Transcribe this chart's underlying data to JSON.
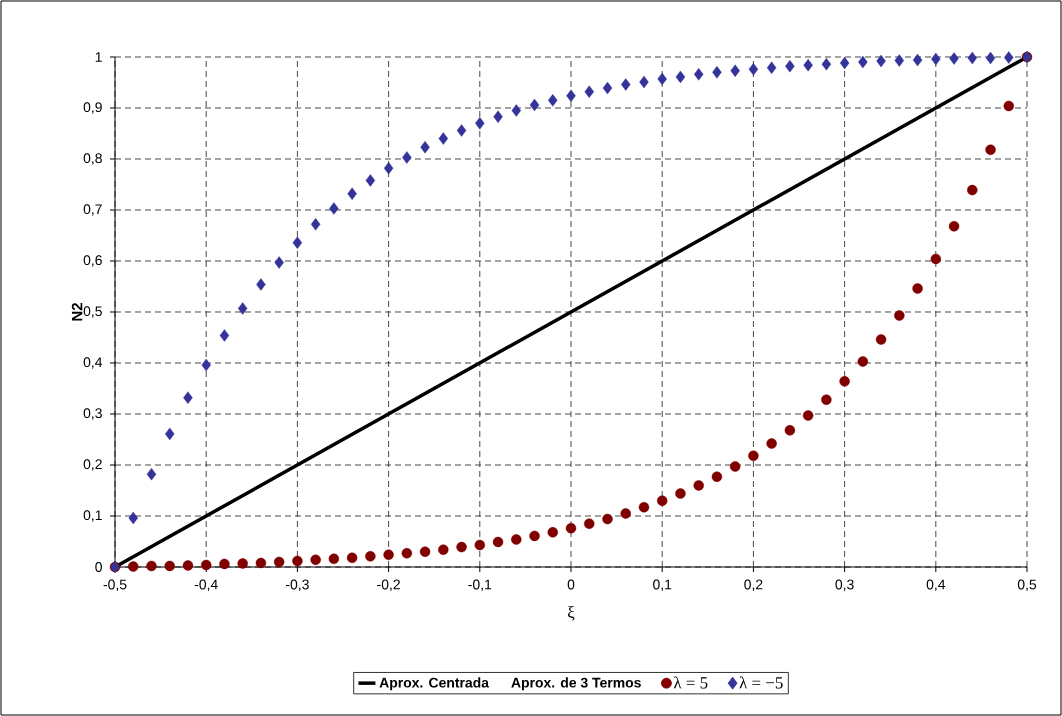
{
  "chart_data": {
    "type": "scatter",
    "xlabel": "ξ",
    "ylabel": "N2",
    "x": [
      -0.5,
      -0.48,
      -0.46,
      -0.44,
      -0.42,
      -0.4,
      -0.38,
      -0.36,
      -0.34,
      -0.32,
      -0.3,
      -0.28,
      -0.26,
      -0.24,
      -0.22,
      -0.2,
      -0.18,
      -0.16,
      -0.14,
      -0.12,
      -0.1,
      -0.08,
      -0.06,
      -0.04,
      -0.02,
      0,
      0.02,
      0.04,
      0.06,
      0.08,
      0.1,
      0.12,
      0.14,
      0.16,
      0.18,
      0.2,
      0.22,
      0.24,
      0.26,
      0.28,
      0.3,
      0.32,
      0.34,
      0.36,
      0.38,
      0.4,
      0.42,
      0.44,
      0.46,
      0.48,
      0.5
    ],
    "series": [
      {
        "name": "Aprox. Centrada",
        "type": "line",
        "color": "#000000",
        "line_style": "solid",
        "marker": "none",
        "x": [
          -0.5,
          0.5
        ],
        "values": [
          0,
          1
        ]
      },
      {
        "name": "Aprox. de 3 Termos",
        "type": "line",
        "values": [
          null,
          null,
          null,
          null,
          null,
          null,
          null,
          null,
          null,
          null,
          null,
          null,
          null,
          null,
          null,
          null,
          null,
          null,
          null,
          null,
          null,
          null,
          null,
          null,
          null,
          null,
          null,
          null,
          null,
          null,
          null,
          null,
          null,
          null,
          null,
          null,
          null,
          null,
          null,
          null,
          null,
          null,
          null,
          null,
          null,
          null,
          null,
          null,
          null,
          null,
          null
        ]
      },
      {
        "name": "λ = 5",
        "color": "#800000",
        "marker": "circle",
        "values": [
          0,
          0.001,
          0.002,
          0.002,
          0.003,
          0.004,
          0.006,
          0.007,
          0.008,
          0.01,
          0.012,
          0.014,
          0.016,
          0.018,
          0.021,
          0.024,
          0.027,
          0.03,
          0.034,
          0.039,
          0.043,
          0.049,
          0.054,
          0.061,
          0.068,
          0.076,
          0.085,
          0.094,
          0.105,
          0.117,
          0.13,
          0.144,
          0.16,
          0.177,
          0.197,
          0.218,
          0.242,
          0.268,
          0.297,
          0.328,
          0.364,
          0.403,
          0.446,
          0.493,
          0.546,
          0.604,
          0.668,
          0.739,
          0.818,
          0.904,
          1
        ]
      },
      {
        "name": "λ = −5",
        "color": "#333399",
        "marker": "diamond",
        "values": [
          0,
          0.096,
          0.182,
          0.261,
          0.332,
          0.396,
          0.454,
          0.507,
          0.554,
          0.597,
          0.636,
          0.672,
          0.703,
          0.732,
          0.758,
          0.782,
          0.803,
          0.823,
          0.84,
          0.856,
          0.87,
          0.883,
          0.895,
          0.906,
          0.915,
          0.924,
          0.932,
          0.939,
          0.946,
          0.951,
          0.957,
          0.961,
          0.966,
          0.97,
          0.973,
          0.976,
          0.979,
          0.982,
          0.984,
          0.986,
          0.988,
          0.99,
          0.992,
          0.993,
          0.994,
          0.996,
          0.997,
          0.998,
          0.998,
          0.999,
          1
        ]
      }
    ],
    "xlim": [
      -0.5,
      0.5
    ],
    "ylim": [
      0,
      1
    ],
    "xticks": [
      {
        "value": -0.5,
        "label": "-0,5"
      },
      {
        "value": -0.4,
        "label": "-0,4"
      },
      {
        "value": -0.3,
        "label": "-0,3"
      },
      {
        "value": -0.2,
        "label": "-0,2"
      },
      {
        "value": -0.1,
        "label": "-0,1"
      },
      0,
      {
        "value": 0.1,
        "label": "0,1"
      },
      {
        "value": 0.2,
        "label": "0,2"
      },
      {
        "value": 0.3,
        "label": "0,3"
      },
      {
        "value": 0.4,
        "label": "0,4"
      },
      {
        "value": 0.5,
        "label": "0,5"
      }
    ],
    "yticks": [
      0,
      {
        "value": 0.1,
        "label": "0,1"
      },
      {
        "value": 0.2,
        "label": "0,2"
      },
      {
        "value": 0.3,
        "label": "0,3"
      },
      {
        "value": 0.4,
        "label": "0,4"
      },
      {
        "value": 0.5,
        "label": "0,5"
      },
      {
        "value": 0.6,
        "label": "0,6"
      },
      {
        "value": 0.7,
        "label": "0,7"
      },
      {
        "value": 0.8,
        "label": "0,8"
      },
      {
        "value": 0.9,
        "label": "0,9"
      },
      1
    ],
    "grid": true,
    "legend": "bottom"
  }
}
